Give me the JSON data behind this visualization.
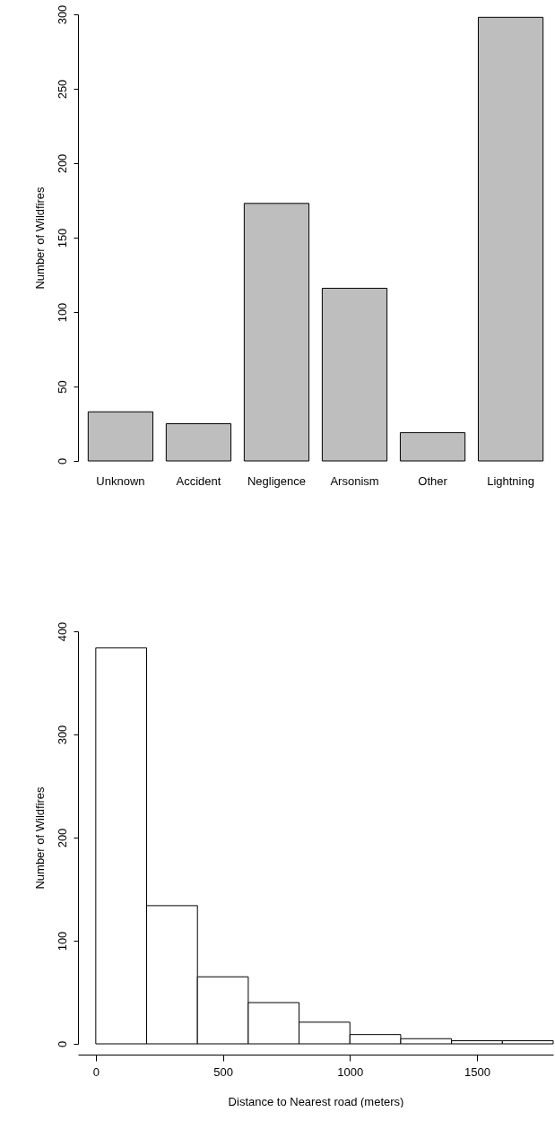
{
  "chart_data": [
    {
      "type": "bar",
      "ylabel": "Number of Wildfires",
      "categories": [
        "Unknown",
        "Accident",
        "Negligence",
        "Arsonism",
        "Other",
        "Lightning"
      ],
      "series": [
        {
          "color": "#bebebe",
          "values": [
            33,
            25,
            173,
            116,
            19,
            298
          ]
        }
      ],
      "ylim": [
        0,
        300
      ],
      "yticks": [
        0,
        50,
        100,
        150,
        200,
        250,
        300
      ],
      "grid": false
    },
    {
      "type": "histogram",
      "xlabel": "Distance to Nearest road (meters)",
      "ylabel": "Number of Wildfires",
      "bins": [
        0,
        200,
        400,
        600,
        800,
        1000,
        1200,
        1400,
        1600,
        1800
      ],
      "series": [
        {
          "color": "#ffffff",
          "values": [
            384,
            134,
            65,
            40,
            21,
            9,
            5,
            3,
            3
          ]
        }
      ],
      "xlim": [
        -70,
        1800
      ],
      "xticks": [
        0,
        500,
        1000,
        1500
      ],
      "ylim": [
        0,
        400
      ],
      "yticks": [
        0,
        100,
        200,
        300,
        400
      ],
      "grid": false
    }
  ]
}
